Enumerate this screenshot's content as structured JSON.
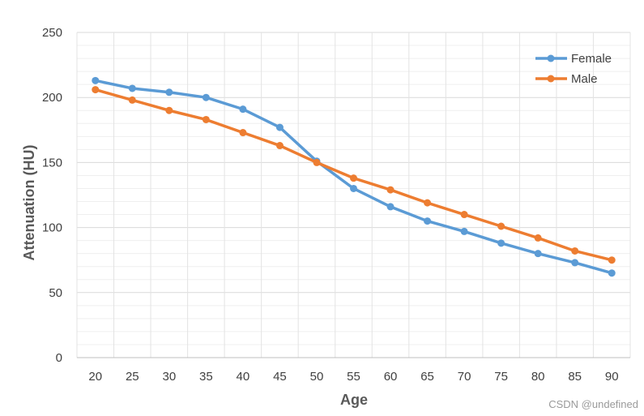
{
  "chart_data": {
    "type": "line",
    "xlabel": "Age",
    "ylabel": "Attenuation (HU)",
    "x": [
      20,
      25,
      30,
      35,
      40,
      45,
      50,
      55,
      60,
      65,
      70,
      75,
      80,
      85,
      90
    ],
    "ylim": [
      0,
      250
    ],
    "yticks": [
      0,
      50,
      100,
      150,
      200,
      250
    ],
    "grid": true,
    "legend_position": "top-right",
    "series": [
      {
        "name": "Female",
        "color": "#5B9BD5",
        "values": [
          213,
          207,
          204,
          200,
          191,
          177,
          151,
          130,
          116,
          105,
          97,
          88,
          80,
          73,
          65
        ]
      },
      {
        "name": "Male",
        "color": "#ED7D31",
        "values": [
          206,
          198,
          190,
          183,
          173,
          163,
          150,
          138,
          129,
          119,
          110,
          101,
          92,
          82,
          75
        ]
      }
    ]
  },
  "watermark": "CSDN @undefined"
}
